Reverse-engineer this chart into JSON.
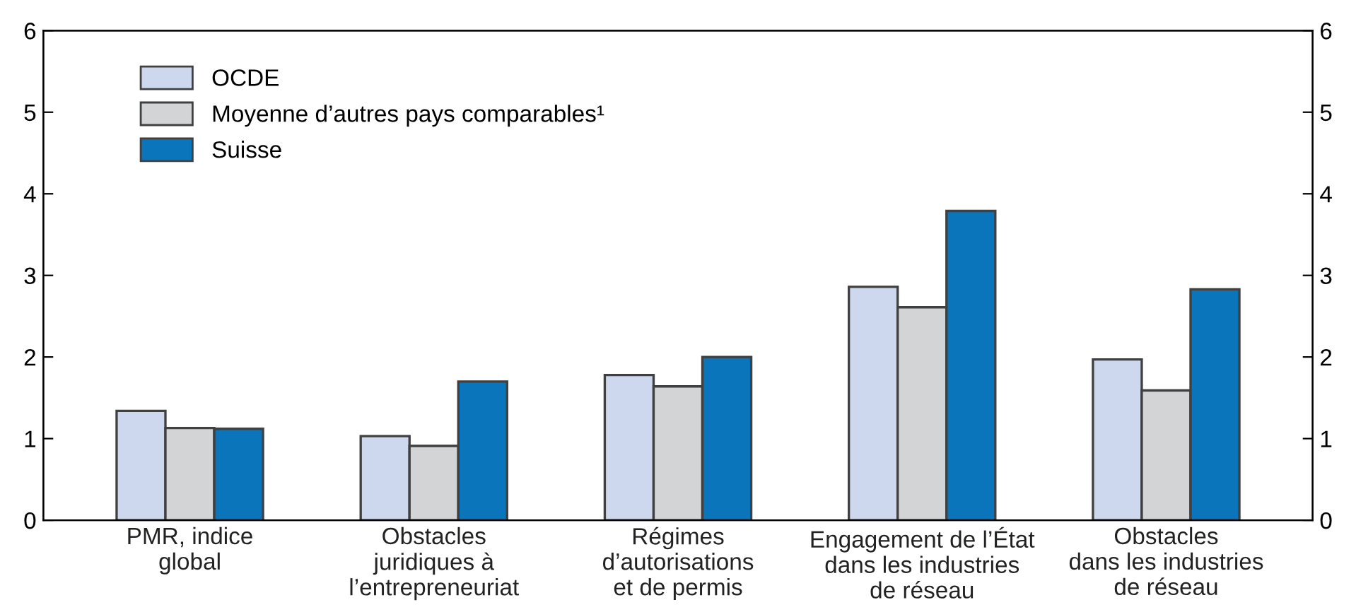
{
  "chart_data": {
    "type": "bar",
    "categories": [
      "PMR, indice\nglobal",
      "Obstacles\njuridiques à\nl’entrepreneuriat",
      "Régimes\nd’autorisations\net de permis",
      "Engagement de l’État\ndans les industries\nde réseau",
      "Obstacles\ndans les industries\nde réseau"
    ],
    "series": [
      {
        "name": "OCDE",
        "color": "#cdd8ef",
        "values": [
          1.34,
          1.03,
          1.78,
          2.86,
          1.97
        ]
      },
      {
        "name": "Moyenne d’autres pays comparables¹",
        "color": "#d3d4d6",
        "values": [
          1.13,
          0.91,
          1.64,
          2.61,
          1.59
        ]
      },
      {
        "name": "Suisse",
        "color": "#0a75bb",
        "values": [
          1.12,
          1.7,
          2.0,
          3.79,
          2.83
        ]
      }
    ],
    "ylim": [
      0,
      6
    ],
    "yticks": [
      0,
      1,
      2,
      3,
      4,
      5,
      6
    ],
    "y2lim": [
      0,
      6
    ],
    "y2ticks": [
      0,
      1,
      2,
      3,
      4,
      5,
      6
    ],
    "grid": false,
    "legend": "top left"
  }
}
